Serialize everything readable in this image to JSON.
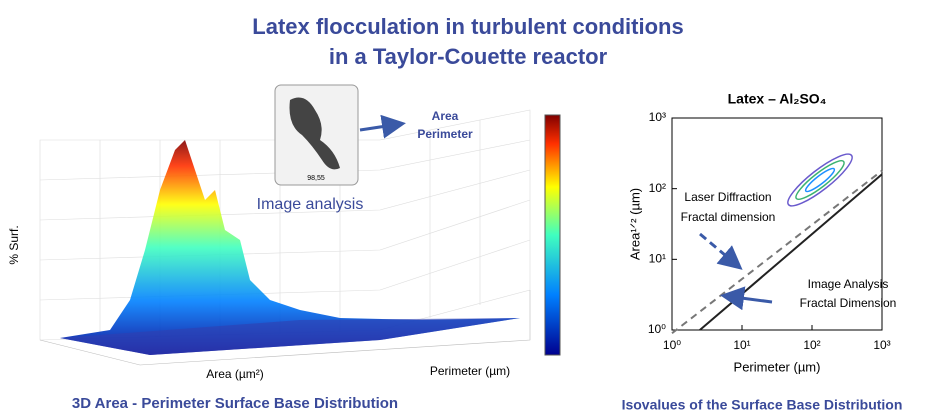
{
  "title_lines": [
    "Latex flocculation in turbulent conditions",
    "in a Taylor-Couette reactor"
  ],
  "left_panel": {
    "inset_labels": [
      "Area",
      "Perimeter"
    ],
    "inset_caption": "98,55",
    "image_caption": "Image analysis",
    "y_label": "% Surf.",
    "x_label": "Area (µm²)",
    "z_label": "Perimeter (µm)",
    "caption": "3D Area - Perimeter Surface Base Distribution"
  },
  "chart_data": {
    "type": "line",
    "title": "Latex – Al₂SO₄",
    "x_label": "Perimeter (µm)",
    "y_label": "Area¹ᐟ² (µm)",
    "x_log": true,
    "y_log": true,
    "xlim": [
      1,
      1000
    ],
    "ylim": [
      1,
      1000
    ],
    "xticks": [
      {
        "value": 1,
        "label": "10⁰"
      },
      {
        "value": 10,
        "label": "10¹"
      },
      {
        "value": 100,
        "label": "10²"
      },
      {
        "value": 1000,
        "label": "10³"
      }
    ],
    "yticks": [
      {
        "value": 1,
        "label": "10⁰"
      },
      {
        "value": 10,
        "label": "10¹"
      },
      {
        "value": 100,
        "label": "10²"
      },
      {
        "value": 1000,
        "label": "10³"
      }
    ],
    "series": [
      {
        "color": "#777777",
        "dash": true,
        "x": [
          1,
          1000
        ],
        "values": [
          0.9,
          180
        ]
      },
      {
        "color": "#222222",
        "dash": false,
        "x": [
          2.5,
          1000
        ],
        "values": [
          1,
          160
        ]
      }
    ],
    "annotations": [
      "Laser Diffraction",
      "Fractal dimension",
      "Image Analysis",
      "Fractal Dimension"
    ],
    "caption": "Isovalues of the Surface Base Distribution"
  }
}
